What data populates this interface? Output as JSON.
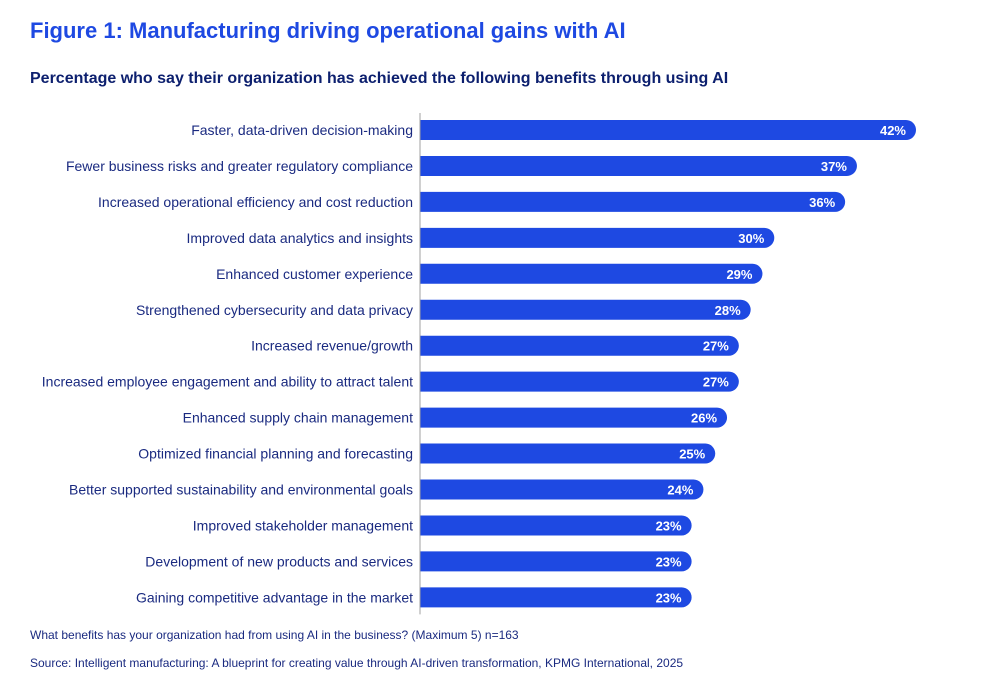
{
  "figure": {
    "title": "Figure 1: Manufacturing driving operational gains with AI",
    "question_note": "What benefits has your organization had from using AI in the business? (Maximum 5) n=163",
    "source_note": "Source: Intelligent manufacturing: A blueprint for creating value through AI-driven transformation, KPMG International, 2025"
  },
  "chart_data": {
    "type": "bar",
    "orientation": "horizontal",
    "title": "Percentage who say their organization has achieved the following benefits through using AI",
    "categories": [
      "Faster, data-driven decision-making",
      "Fewer business risks and greater regulatory compliance",
      "Increased operational efficiency and cost reduction",
      "Improved data analytics and insights",
      "Enhanced customer experience",
      "Strengthened cybersecurity and data privacy",
      "Increased revenue/growth",
      "Increased employee engagement and ability to attract talent",
      "Enhanced supply chain management",
      "Optimized financial planning and forecasting",
      "Better supported sustainability and environmental goals",
      "Improved stakeholder management",
      "Development of new products and services",
      "Gaining competitive advantage in the market"
    ],
    "values": [
      42,
      37,
      36,
      30,
      29,
      28,
      27,
      27,
      26,
      25,
      24,
      23,
      23,
      23
    ],
    "value_labels": [
      "42%",
      "37%",
      "36%",
      "30%",
      "29%",
      "28%",
      "27%",
      "27%",
      "26%",
      "25%",
      "24%",
      "23%",
      "23%",
      "23%"
    ],
    "unit": "%",
    "xlim": [
      0,
      42
    ],
    "grid": false,
    "bar_color": "#1e49e2",
    "axis_color": "#a0a0a0"
  }
}
